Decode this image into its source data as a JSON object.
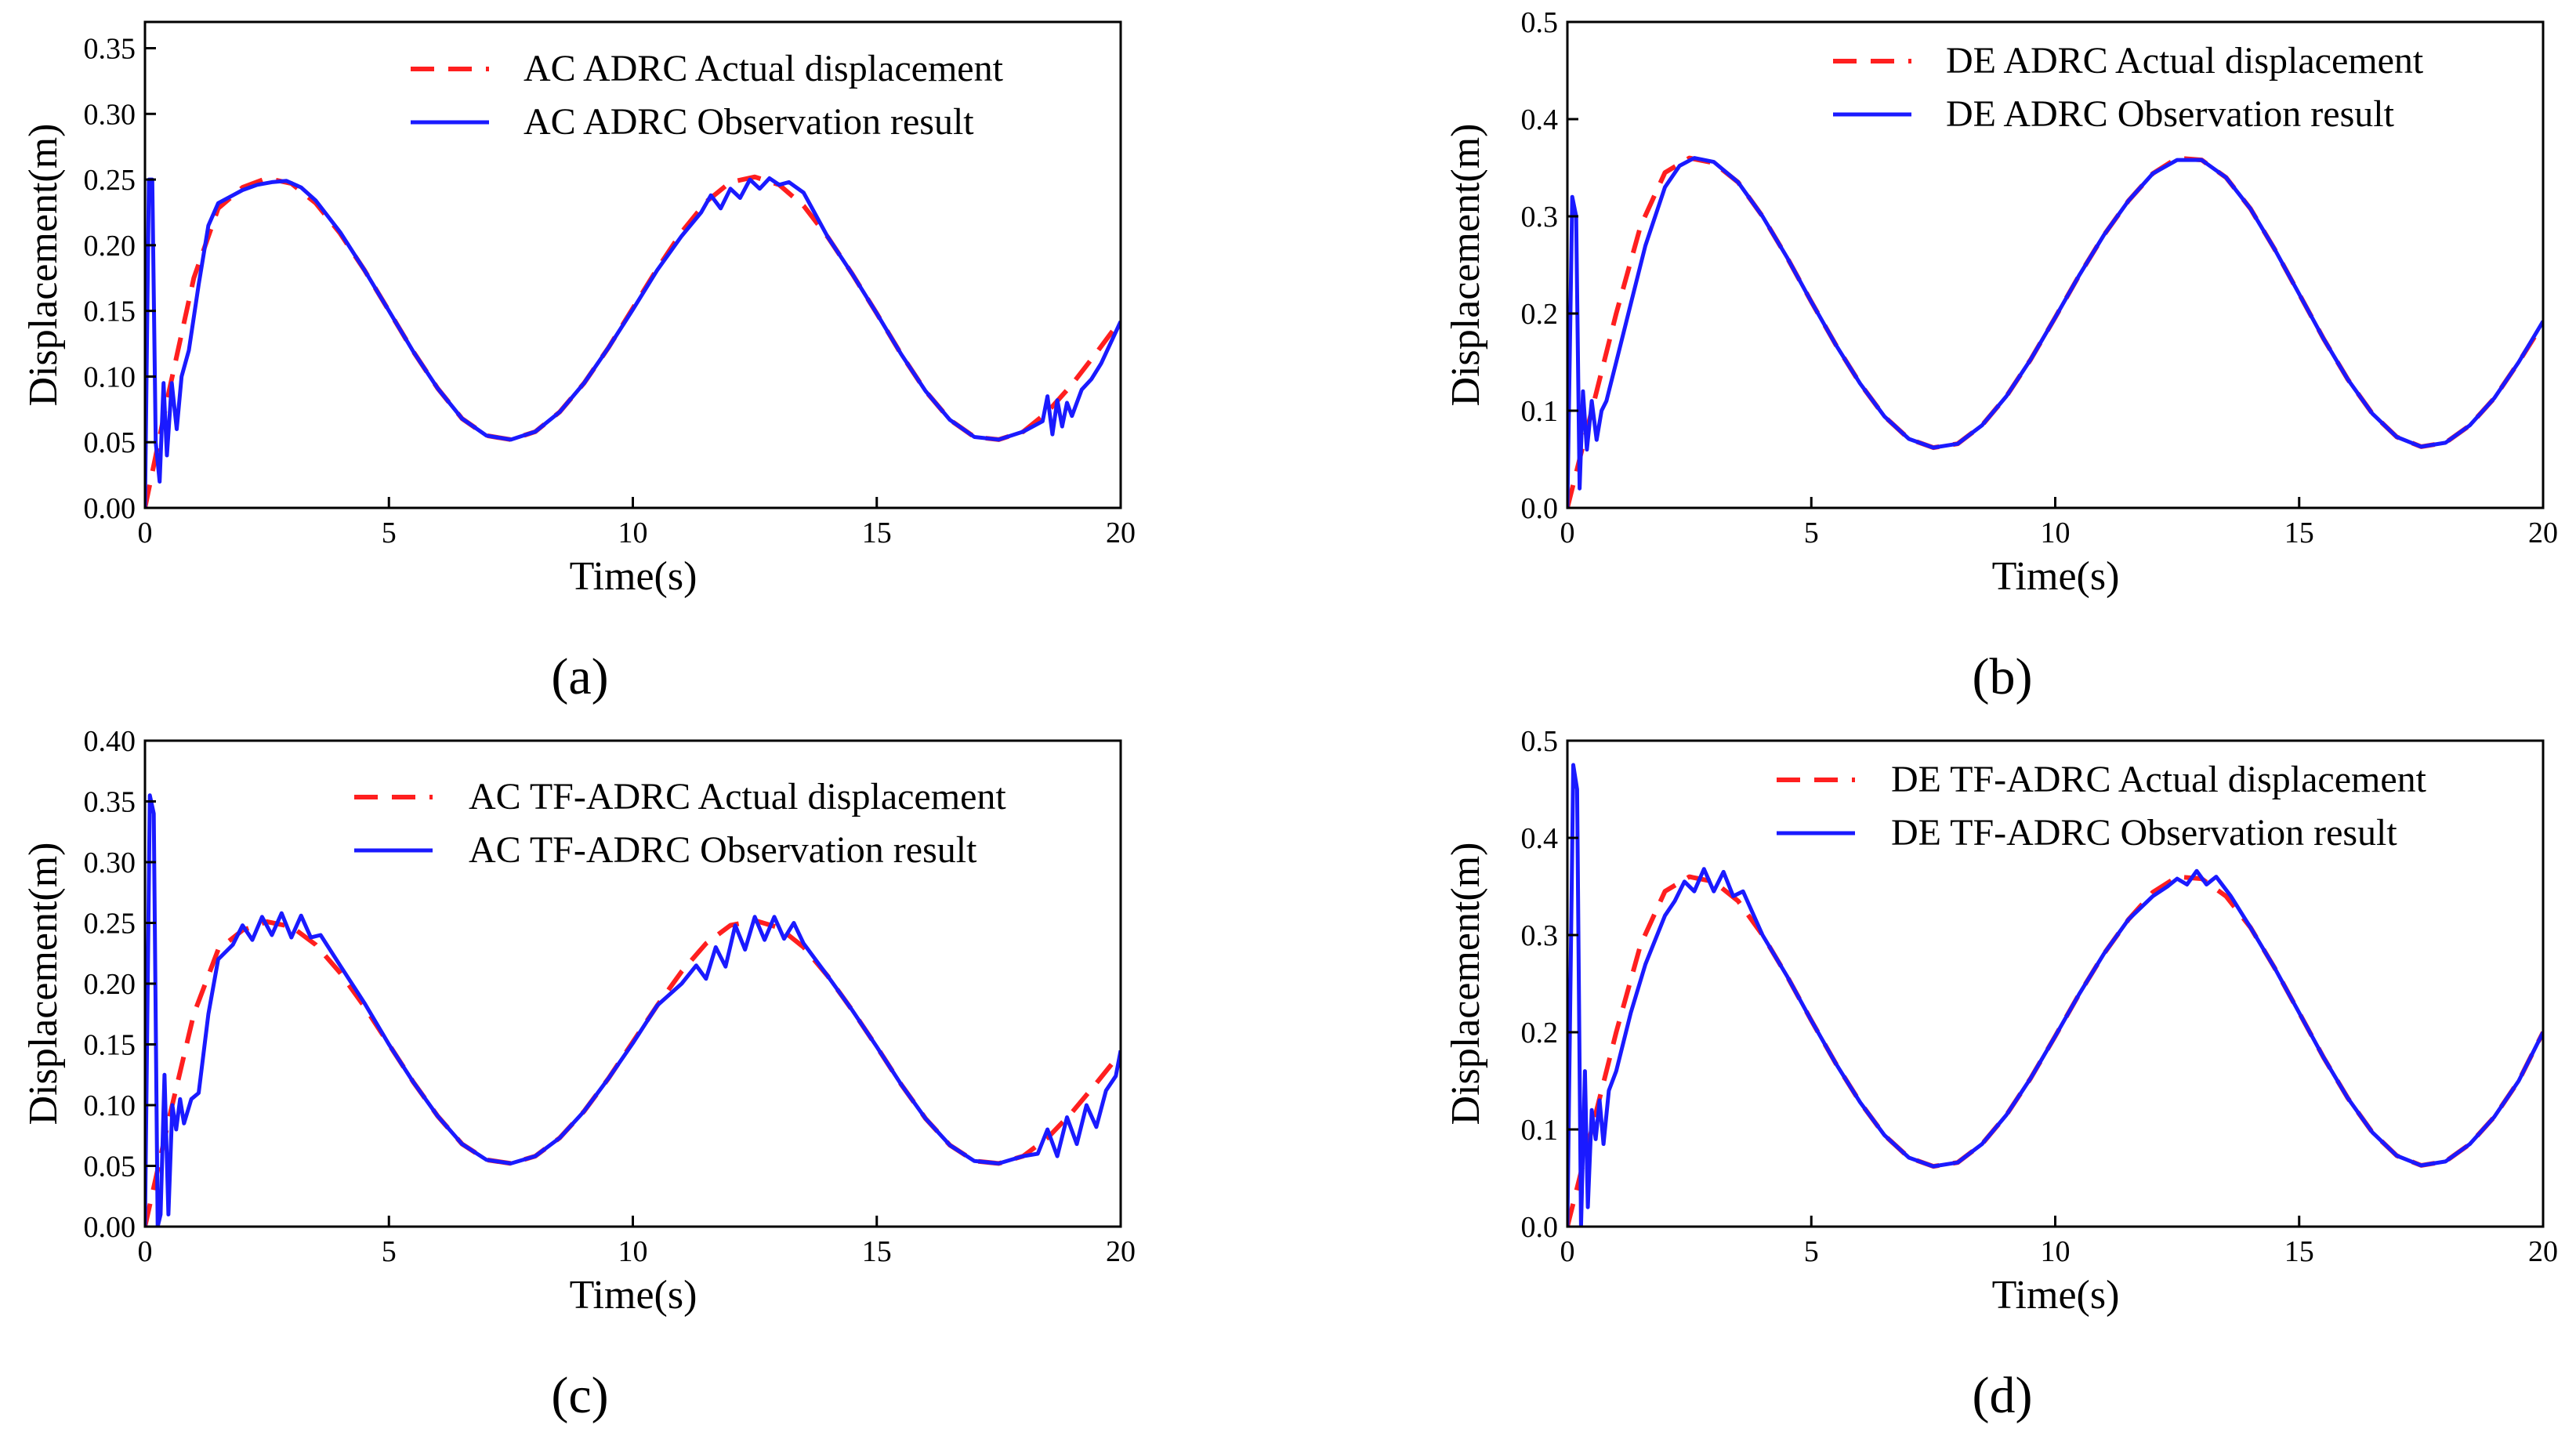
{
  "colors": {
    "actual": "#ff1f1f",
    "observed": "#1a1aff",
    "axis": "#000000",
    "background": "#ffffff"
  },
  "chart_data": [
    {
      "type": "line",
      "panel_label": "(a)",
      "xlabel": "Time(s)",
      "ylabel": "Displacement(m)",
      "xlim": [
        0,
        20
      ],
      "ylim": [
        0,
        0.37
      ],
      "xticks": [
        0,
        5,
        10,
        15,
        20
      ],
      "xtick_labels": [
        "0",
        "5",
        "10",
        "15",
        "20"
      ],
      "yticks": [
        0,
        0.05,
        0.1,
        0.15,
        0.2,
        0.25,
        0.3,
        0.35
      ],
      "ytick_labels": [
        "0.00",
        "0.05",
        "0.10",
        "0.15",
        "0.20",
        "0.25",
        "0.30",
        "0.35"
      ],
      "legend_position": "top-right",
      "series": [
        {
          "name": "AC ADRC Actual displacement",
          "style": "dashed",
          "x": [
            0,
            0.5,
            1.0,
            1.5,
            2.0,
            2.5,
            3.0,
            3.5,
            4.0,
            4.5,
            5.0,
            5.5,
            6.0,
            6.5,
            7.0,
            7.5,
            8.0,
            8.5,
            9.0,
            9.5,
            10.0,
            10.5,
            11.0,
            11.5,
            12.0,
            12.5,
            13.0,
            13.5,
            14.0,
            14.5,
            15.0,
            15.5,
            16.0,
            16.5,
            17.0,
            17.5,
            18.0,
            18.5,
            19.0,
            19.5,
            20.0
          ],
          "values": [
            0.0,
            0.09,
            0.175,
            0.228,
            0.244,
            0.251,
            0.247,
            0.232,
            0.209,
            0.181,
            0.15,
            0.119,
            0.091,
            0.068,
            0.055,
            0.052,
            0.058,
            0.073,
            0.095,
            0.122,
            0.152,
            0.182,
            0.21,
            0.233,
            0.248,
            0.252,
            0.246,
            0.23,
            0.206,
            0.178,
            0.148,
            0.117,
            0.089,
            0.067,
            0.054,
            0.052,
            0.058,
            0.073,
            0.094,
            0.118,
            0.143
          ]
        },
        {
          "name": "AC ADRC Observation result",
          "style": "solid",
          "x": [
            0,
            0.08,
            0.15,
            0.22,
            0.3,
            0.38,
            0.45,
            0.55,
            0.65,
            0.75,
            0.9,
            1.1,
            1.3,
            1.5,
            1.8,
            2.0,
            2.3,
            2.6,
            2.9,
            3.2,
            3.5,
            4.0,
            4.5,
            5.0,
            5.5,
            6.0,
            6.5,
            7.0,
            7.5,
            8.0,
            8.5,
            9.0,
            9.5,
            10.0,
            10.5,
            11.0,
            11.4,
            11.6,
            11.8,
            12.0,
            12.2,
            12.4,
            12.6,
            12.8,
            13.0,
            13.2,
            13.5,
            14.0,
            14.5,
            15.0,
            15.5,
            16.0,
            16.5,
            17.0,
            17.5,
            18.0,
            18.4,
            18.5,
            18.6,
            18.7,
            18.8,
            18.9,
            19.0,
            19.2,
            19.4,
            19.6,
            19.8,
            20.0
          ],
          "values": [
            0.0,
            0.25,
            0.25,
            0.05,
            0.02,
            0.095,
            0.04,
            0.095,
            0.06,
            0.1,
            0.12,
            0.17,
            0.215,
            0.232,
            0.238,
            0.242,
            0.246,
            0.248,
            0.249,
            0.244,
            0.234,
            0.21,
            0.181,
            0.15,
            0.119,
            0.091,
            0.068,
            0.055,
            0.052,
            0.058,
            0.073,
            0.095,
            0.122,
            0.151,
            0.181,
            0.207,
            0.225,
            0.238,
            0.228,
            0.243,
            0.236,
            0.25,
            0.243,
            0.251,
            0.246,
            0.248,
            0.24,
            0.206,
            0.178,
            0.148,
            0.117,
            0.089,
            0.067,
            0.054,
            0.052,
            0.058,
            0.066,
            0.085,
            0.056,
            0.082,
            0.062,
            0.08,
            0.07,
            0.09,
            0.098,
            0.11,
            0.126,
            0.142
          ]
        }
      ]
    },
    {
      "type": "line",
      "panel_label": "(b)",
      "xlabel": "Time(s)",
      "ylabel": "Displacement(m)",
      "xlim": [
        0,
        20
      ],
      "ylim": [
        0,
        0.5
      ],
      "xticks": [
        0,
        5,
        10,
        15,
        20
      ],
      "xtick_labels": [
        "0",
        "5",
        "10",
        "15",
        "20"
      ],
      "yticks": [
        0,
        0.1,
        0.2,
        0.3,
        0.4,
        0.5
      ],
      "ytick_labels": [
        "0.0",
        "0.1",
        "0.2",
        "0.3",
        "0.4",
        "0.5"
      ],
      "legend_position": "top-right",
      "series": [
        {
          "name": "DE ADRC Actual displacement",
          "style": "dashed",
          "x": [
            0,
            0.5,
            1.0,
            1.5,
            2.0,
            2.5,
            3.0,
            3.5,
            4.0,
            4.5,
            5.0,
            5.5,
            6.0,
            6.5,
            7.0,
            7.5,
            8.0,
            8.5,
            9.0,
            9.5,
            10.0,
            10.5,
            11.0,
            11.5,
            12.0,
            12.5,
            13.0,
            13.5,
            14.0,
            14.5,
            15.0,
            15.5,
            16.0,
            16.5,
            17.0,
            17.5,
            18.0,
            18.5,
            19.0,
            19.5,
            20.0
          ],
          "values": [
            0.0,
            0.1,
            0.2,
            0.29,
            0.345,
            0.36,
            0.355,
            0.335,
            0.3,
            0.258,
            0.212,
            0.168,
            0.128,
            0.094,
            0.071,
            0.062,
            0.066,
            0.085,
            0.115,
            0.153,
            0.196,
            0.24,
            0.281,
            0.316,
            0.344,
            0.36,
            0.358,
            0.34,
            0.308,
            0.266,
            0.22,
            0.174,
            0.132,
            0.097,
            0.073,
            0.063,
            0.067,
            0.085,
            0.113,
            0.15,
            0.19
          ]
        },
        {
          "name": "DE ADRC Observation result",
          "style": "solid",
          "x": [
            0,
            0.1,
            0.18,
            0.25,
            0.32,
            0.4,
            0.5,
            0.6,
            0.7,
            0.8,
            1.0,
            1.3,
            1.6,
            2.0,
            2.3,
            2.6,
            3.0,
            3.5,
            4.0,
            4.5,
            5.0,
            5.5,
            6.0,
            6.5,
            7.0,
            7.5,
            8.0,
            8.5,
            9.0,
            9.5,
            10.0,
            10.5,
            11.0,
            11.5,
            12.0,
            12.5,
            13.0,
            13.5,
            14.0,
            14.5,
            15.0,
            15.5,
            16.0,
            16.5,
            17.0,
            17.5,
            18.0,
            18.5,
            19.0,
            19.5,
            20.0
          ],
          "values": [
            0.0,
            0.32,
            0.3,
            0.02,
            0.12,
            0.06,
            0.11,
            0.07,
            0.1,
            0.11,
            0.15,
            0.21,
            0.27,
            0.33,
            0.352,
            0.36,
            0.356,
            0.335,
            0.3,
            0.258,
            0.212,
            0.168,
            0.128,
            0.094,
            0.071,
            0.062,
            0.066,
            0.085,
            0.115,
            0.153,
            0.196,
            0.24,
            0.281,
            0.316,
            0.344,
            0.358,
            0.358,
            0.34,
            0.308,
            0.266,
            0.22,
            0.174,
            0.132,
            0.097,
            0.073,
            0.063,
            0.067,
            0.085,
            0.113,
            0.15,
            0.192
          ]
        }
      ]
    },
    {
      "type": "line",
      "panel_label": "(c)",
      "xlabel": "Time(s)",
      "ylabel": "Displacement(m)",
      "xlim": [
        0,
        20
      ],
      "ylim": [
        0,
        0.4
      ],
      "xticks": [
        0,
        5,
        10,
        15,
        20
      ],
      "xtick_labels": [
        "0",
        "5",
        "10",
        "15",
        "20"
      ],
      "yticks": [
        0,
        0.05,
        0.1,
        0.15,
        0.2,
        0.25,
        0.3,
        0.35,
        0.4
      ],
      "ytick_labels": [
        "0.00",
        "0.05",
        "0.10",
        "0.15",
        "0.20",
        "0.25",
        "0.30",
        "0.35",
        "0.40"
      ],
      "legend_position": "top-right",
      "series": [
        {
          "name": "AC TF-ADRC Actual displacement",
          "style": "dashed",
          "x": [
            0,
            0.5,
            1.0,
            1.5,
            2.0,
            2.5,
            3.0,
            3.5,
            4.0,
            4.5,
            5.0,
            5.5,
            6.0,
            6.5,
            7.0,
            7.5,
            8.0,
            8.5,
            9.0,
            9.5,
            10.0,
            10.5,
            11.0,
            11.5,
            12.0,
            12.5,
            13.0,
            13.5,
            14.0,
            14.5,
            15.0,
            15.5,
            16.0,
            16.5,
            17.0,
            17.5,
            18.0,
            18.5,
            19.0,
            19.5,
            20.0
          ],
          "values": [
            0.0,
            0.09,
            0.175,
            0.228,
            0.244,
            0.251,
            0.247,
            0.232,
            0.209,
            0.181,
            0.15,
            0.119,
            0.091,
            0.068,
            0.055,
            0.052,
            0.058,
            0.073,
            0.095,
            0.122,
            0.152,
            0.182,
            0.21,
            0.233,
            0.248,
            0.252,
            0.246,
            0.23,
            0.206,
            0.178,
            0.148,
            0.117,
            0.089,
            0.067,
            0.054,
            0.052,
            0.058,
            0.073,
            0.094,
            0.118,
            0.143
          ]
        },
        {
          "name": "AC TF-ADRC Observation result",
          "style": "solid",
          "x": [
            0,
            0.1,
            0.18,
            0.26,
            0.32,
            0.4,
            0.48,
            0.56,
            0.64,
            0.72,
            0.8,
            0.95,
            1.1,
            1.3,
            1.5,
            1.8,
            2.0,
            2.2,
            2.4,
            2.6,
            2.8,
            3.0,
            3.2,
            3.4,
            3.6,
            4.0,
            4.5,
            5.0,
            5.5,
            6.0,
            6.5,
            7.0,
            7.5,
            8.0,
            8.5,
            9.0,
            9.5,
            10.0,
            10.5,
            11.0,
            11.3,
            11.5,
            11.7,
            11.9,
            12.1,
            12.3,
            12.5,
            12.7,
            12.9,
            13.1,
            13.3,
            13.5,
            14.0,
            14.5,
            15.0,
            15.5,
            16.0,
            16.5,
            17.0,
            17.5,
            18.0,
            18.3,
            18.5,
            18.7,
            18.9,
            19.1,
            19.3,
            19.5,
            19.7,
            19.9,
            20.0
          ],
          "values": [
            0.0,
            0.355,
            0.34,
            0.0,
            0.01,
            0.125,
            0.01,
            0.1,
            0.08,
            0.105,
            0.085,
            0.105,
            0.11,
            0.175,
            0.22,
            0.232,
            0.248,
            0.236,
            0.255,
            0.24,
            0.258,
            0.238,
            0.256,
            0.238,
            0.24,
            0.215,
            0.184,
            0.15,
            0.119,
            0.091,
            0.068,
            0.055,
            0.052,
            0.058,
            0.073,
            0.095,
            0.122,
            0.151,
            0.182,
            0.2,
            0.215,
            0.204,
            0.23,
            0.214,
            0.248,
            0.228,
            0.255,
            0.236,
            0.255,
            0.237,
            0.25,
            0.233,
            0.206,
            0.178,
            0.148,
            0.117,
            0.089,
            0.067,
            0.054,
            0.052,
            0.058,
            0.06,
            0.08,
            0.058,
            0.09,
            0.068,
            0.1,
            0.082,
            0.112,
            0.124,
            0.145
          ]
        }
      ]
    },
    {
      "type": "line",
      "panel_label": "(d)",
      "xlabel": "Time(s)",
      "ylabel": "Displacement(m)",
      "xlim": [
        0,
        20
      ],
      "ylim": [
        0,
        0.5
      ],
      "xticks": [
        0,
        5,
        10,
        15,
        20
      ],
      "xtick_labels": [
        "0",
        "5",
        "10",
        "15",
        "20"
      ],
      "yticks": [
        0,
        0.1,
        0.2,
        0.3,
        0.4,
        0.5
      ],
      "ytick_labels": [
        "0.0",
        "0.1",
        "0.2",
        "0.3",
        "0.4",
        "0.5"
      ],
      "legend_position": "top-right",
      "series": [
        {
          "name": "DE TF-ADRC Actual displacement",
          "style": "dashed",
          "x": [
            0,
            0.5,
            1.0,
            1.5,
            2.0,
            2.5,
            3.0,
            3.5,
            4.0,
            4.5,
            5.0,
            5.5,
            6.0,
            6.5,
            7.0,
            7.5,
            8.0,
            8.5,
            9.0,
            9.5,
            10.0,
            10.5,
            11.0,
            11.5,
            12.0,
            12.5,
            13.0,
            13.5,
            14.0,
            14.5,
            15.0,
            15.5,
            16.0,
            16.5,
            17.0,
            17.5,
            18.0,
            18.5,
            19.0,
            19.5,
            20.0
          ],
          "values": [
            0.0,
            0.1,
            0.2,
            0.29,
            0.345,
            0.36,
            0.355,
            0.335,
            0.3,
            0.258,
            0.212,
            0.168,
            0.128,
            0.094,
            0.071,
            0.062,
            0.066,
            0.085,
            0.115,
            0.153,
            0.196,
            0.24,
            0.281,
            0.316,
            0.344,
            0.36,
            0.358,
            0.34,
            0.308,
            0.266,
            0.22,
            0.174,
            0.132,
            0.097,
            0.073,
            0.063,
            0.067,
            0.085,
            0.113,
            0.15,
            0.2
          ]
        },
        {
          "name": "DE TF-ADRC Observation result",
          "style": "solid",
          "x": [
            0,
            0.12,
            0.2,
            0.28,
            0.36,
            0.42,
            0.5,
            0.58,
            0.66,
            0.74,
            0.85,
            1.0,
            1.3,
            1.6,
            2.0,
            2.2,
            2.4,
            2.6,
            2.8,
            3.0,
            3.2,
            3.4,
            3.6,
            4.0,
            4.5,
            5.0,
            5.5,
            6.0,
            6.5,
            7.0,
            7.5,
            8.0,
            8.5,
            9.0,
            9.5,
            10.0,
            10.5,
            11.0,
            11.5,
            12.0,
            12.3,
            12.5,
            12.7,
            12.9,
            13.1,
            13.3,
            13.6,
            14.0,
            14.5,
            15.0,
            15.5,
            16.0,
            16.5,
            17.0,
            17.5,
            18.0,
            18.5,
            19.0,
            19.5,
            20.0
          ],
          "values": [
            0.0,
            0.475,
            0.45,
            0.0,
            0.16,
            0.02,
            0.12,
            0.09,
            0.13,
            0.085,
            0.14,
            0.16,
            0.22,
            0.27,
            0.32,
            0.335,
            0.355,
            0.345,
            0.368,
            0.345,
            0.365,
            0.34,
            0.345,
            0.3,
            0.258,
            0.212,
            0.168,
            0.128,
            0.094,
            0.071,
            0.062,
            0.066,
            0.085,
            0.115,
            0.153,
            0.196,
            0.24,
            0.281,
            0.316,
            0.34,
            0.35,
            0.358,
            0.352,
            0.366,
            0.352,
            0.36,
            0.34,
            0.308,
            0.266,
            0.22,
            0.174,
            0.132,
            0.097,
            0.073,
            0.063,
            0.067,
            0.085,
            0.113,
            0.15,
            0.2
          ]
        }
      ]
    }
  ]
}
